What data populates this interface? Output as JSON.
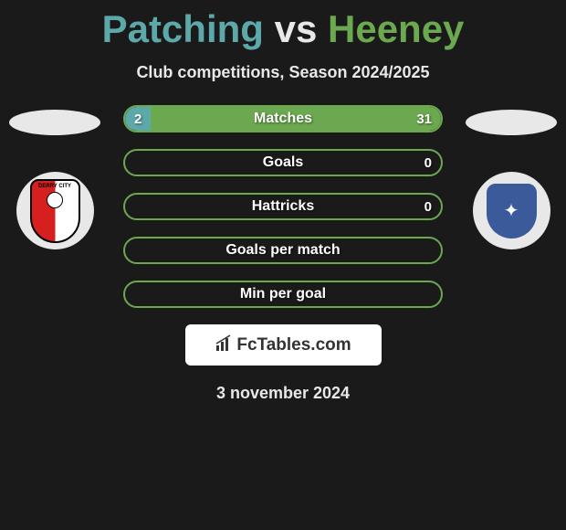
{
  "title": {
    "player1": "Patching",
    "vs": "vs",
    "player2": "Heeney"
  },
  "subtitle": "Club competitions, Season 2024/2025",
  "club_left": {
    "name": "DERRY CITY",
    "badge_bg": "#e8e8e8"
  },
  "club_right": {
    "name": "DROGHEDA UNITED",
    "badge_bg": "#e8e8e8",
    "badge_color": "#3a5a9a"
  },
  "stats": [
    {
      "label": "Matches",
      "left_value": "2",
      "right_value": "31",
      "left_fill_pct": 8,
      "right_fill_pct": 92,
      "border_color": "#6ba84f"
    },
    {
      "label": "Goals",
      "left_value": "",
      "right_value": "0",
      "left_fill_pct": 0,
      "right_fill_pct": 0,
      "border_color": "#6ba84f"
    },
    {
      "label": "Hattricks",
      "left_value": "",
      "right_value": "0",
      "left_fill_pct": 0,
      "right_fill_pct": 0,
      "border_color": "#6ba84f"
    },
    {
      "label": "Goals per match",
      "left_value": "",
      "right_value": "",
      "left_fill_pct": 0,
      "right_fill_pct": 0,
      "border_color": "#6ba84f"
    },
    {
      "label": "Min per goal",
      "left_value": "",
      "right_value": "",
      "left_fill_pct": 0,
      "right_fill_pct": 0,
      "border_color": "#6ba84f"
    }
  ],
  "footer": {
    "site": "FcTables.com",
    "date": "3 november 2024"
  },
  "colors": {
    "bg": "#1a1a1a",
    "player1_color": "#5da9a9",
    "player2_color": "#6ba84f",
    "text_light": "#e8e8e8"
  }
}
